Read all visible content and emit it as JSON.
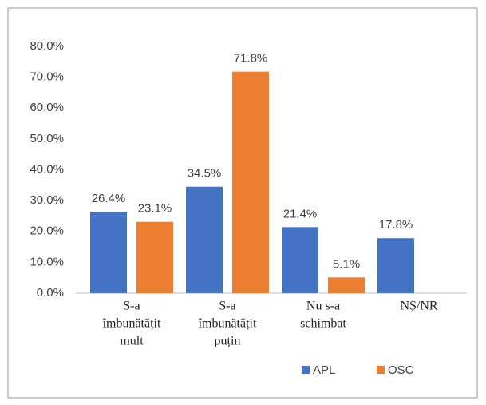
{
  "chart_data": {
    "type": "bar",
    "categories": [
      [
        "S-a",
        "îmbunătățit",
        "mult"
      ],
      [
        "S-a",
        "îmbunătățit",
        "puțin"
      ],
      [
        "Nu s-a",
        "schimbat"
      ],
      [
        "NȘ/NR"
      ]
    ],
    "series": [
      {
        "name": "APL",
        "color": "#4472c4",
        "values": [
          26.4,
          34.5,
          21.4,
          17.8
        ],
        "value_labels": [
          "26.4%",
          "34.5%",
          "21.4%",
          "17.8%"
        ]
      },
      {
        "name": "OSC",
        "color": "#ed7d31",
        "values": [
          23.1,
          71.8,
          5.1,
          null
        ],
        "value_labels": [
          "23.1%",
          "71.8%",
          "5.1%",
          null
        ]
      }
    ],
    "ylim": [
      0,
      80
    ],
    "yticks": [
      {
        "value": 0,
        "label": "0.0%"
      },
      {
        "value": 10,
        "label": "10.0%"
      },
      {
        "value": 20,
        "label": "20.0%"
      },
      {
        "value": 30,
        "label": "30.0%"
      },
      {
        "value": 40,
        "label": "40.0%"
      },
      {
        "value": 50,
        "label": "50.0%"
      },
      {
        "value": 60,
        "label": "60.0%"
      },
      {
        "value": 70,
        "label": "70.0%"
      },
      {
        "value": 80,
        "label": "80.0%"
      }
    ],
    "grid": false,
    "legend": "bottom"
  }
}
